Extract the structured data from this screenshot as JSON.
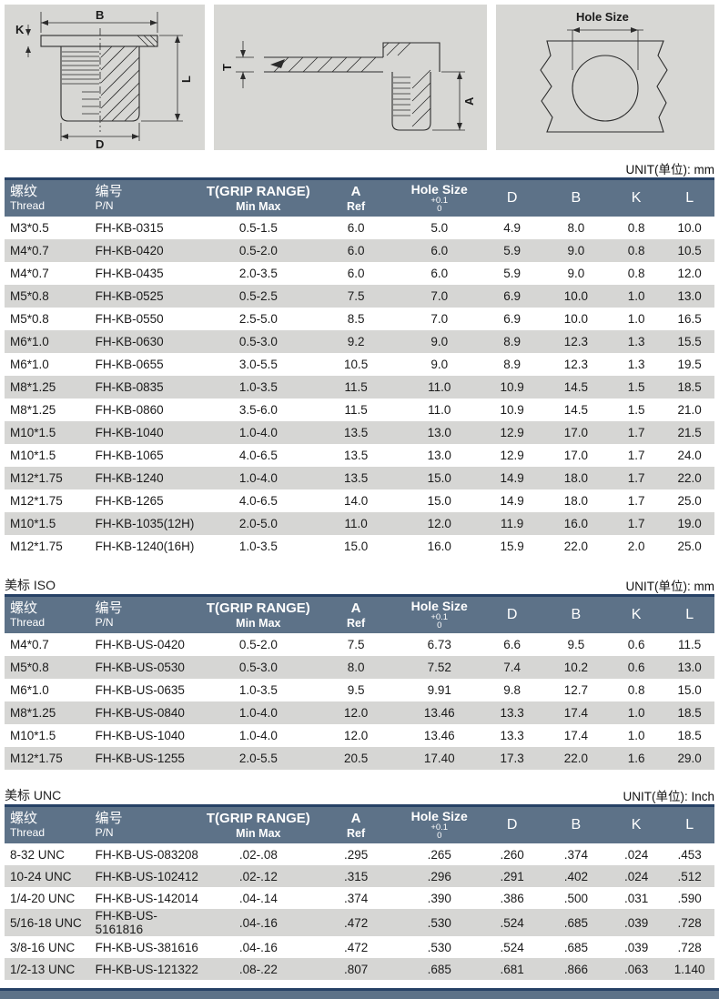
{
  "diagrams": {
    "front": {
      "b": "B",
      "k": "K",
      "l": "L",
      "d": "D"
    },
    "installed": {
      "t": "T",
      "a": "A"
    },
    "hole": {
      "label": "Hole Size"
    }
  },
  "header_labels": {
    "thread_cn": "螺纹",
    "thread_en": "Thread",
    "pn_cn": "编号",
    "pn_en": "P/N",
    "grip_label": "T(GRIP RANGE)",
    "grip_sub": "Min Max",
    "a_label": "A",
    "a_sub": "Ref",
    "hole_label": "Hole Size",
    "hole_tol_top": "+0.1",
    "hole_tol_bot": "0",
    "d_label": "D",
    "b_label": "B",
    "k_label": "K",
    "l_label": "L"
  },
  "colors": {
    "header_bg": "#5d7288",
    "header_border": "#274266",
    "row_alt": "#d6d6d4",
    "panel_bg": "#d7d7d4"
  },
  "tables": [
    {
      "section_label": "",
      "unit_label": "UNIT(单位): mm",
      "rows": [
        [
          "M3*0.5",
          "FH-KB-0315",
          "0.5-1.5",
          "6.0",
          "5.0",
          "4.9",
          "8.0",
          "0.8",
          "10.0"
        ],
        [
          "M4*0.7",
          "FH-KB-0420",
          "0.5-2.0",
          "6.0",
          "6.0",
          "5.9",
          "9.0",
          "0.8",
          "10.5"
        ],
        [
          "M4*0.7",
          "FH-KB-0435",
          "2.0-3.5",
          "6.0",
          "6.0",
          "5.9",
          "9.0",
          "0.8",
          "12.0"
        ],
        [
          "M5*0.8",
          "FH-KB-0525",
          "0.5-2.5",
          "7.5",
          "7.0",
          "6.9",
          "10.0",
          "1.0",
          "13.0"
        ],
        [
          "M5*0.8",
          "FH-KB-0550",
          "2.5-5.0",
          "8.5",
          "7.0",
          "6.9",
          "10.0",
          "1.0",
          "16.5"
        ],
        [
          "M6*1.0",
          "FH-KB-0630",
          "0.5-3.0",
          "9.2",
          "9.0",
          "8.9",
          "12.3",
          "1.3",
          "15.5"
        ],
        [
          "M6*1.0",
          "FH-KB-0655",
          "3.0-5.5",
          "10.5",
          "9.0",
          "8.9",
          "12.3",
          "1.3",
          "19.5"
        ],
        [
          "M8*1.25",
          "FH-KB-0835",
          "1.0-3.5",
          "11.5",
          "11.0",
          "10.9",
          "14.5",
          "1.5",
          "18.5"
        ],
        [
          "M8*1.25",
          "FH-KB-0860",
          "3.5-6.0",
          "11.5",
          "11.0",
          "10.9",
          "14.5",
          "1.5",
          "21.0"
        ],
        [
          "M10*1.5",
          "FH-KB-1040",
          "1.0-4.0",
          "13.5",
          "13.0",
          "12.9",
          "17.0",
          "1.7",
          "21.5"
        ],
        [
          "M10*1.5",
          "FH-KB-1065",
          "4.0-6.5",
          "13.5",
          "13.0",
          "12.9",
          "17.0",
          "1.7",
          "24.0"
        ],
        [
          "M12*1.75",
          "FH-KB-1240",
          "1.0-4.0",
          "13.5",
          "15.0",
          "14.9",
          "18.0",
          "1.7",
          "22.0"
        ],
        [
          "M12*1.75",
          "FH-KB-1265",
          "4.0-6.5",
          "14.0",
          "15.0",
          "14.9",
          "18.0",
          "1.7",
          "25.0"
        ],
        [
          "M10*1.5",
          "FH-KB-1035(12H)",
          "2.0-5.0",
          "11.0",
          "12.0",
          "11.9",
          "16.0",
          "1.7",
          "19.0"
        ],
        [
          "M12*1.75",
          "FH-KB-1240(16H)",
          "1.0-3.5",
          "15.0",
          "16.0",
          "15.9",
          "22.0",
          "2.0",
          "25.0"
        ]
      ]
    },
    {
      "section_label": "美标 ISO",
      "unit_label": "UNIT(单位): mm",
      "rows": [
        [
          "M4*0.7",
          "FH-KB-US-0420",
          "0.5-2.0",
          "7.5",
          "6.73",
          "6.6",
          "9.5",
          "0.6",
          "11.5"
        ],
        [
          "M5*0.8",
          "FH-KB-US-0530",
          "0.5-3.0",
          "8.0",
          "7.52",
          "7.4",
          "10.2",
          "0.6",
          "13.0"
        ],
        [
          "M6*1.0",
          "FH-KB-US-0635",
          "1.0-3.5",
          "9.5",
          "9.91",
          "9.8",
          "12.7",
          "0.8",
          "15.0"
        ],
        [
          "M8*1.25",
          "FH-KB-US-0840",
          "1.0-4.0",
          "12.0",
          "13.46",
          "13.3",
          "17.4",
          "1.0",
          "18.5"
        ],
        [
          "M10*1.5",
          "FH-KB-US-1040",
          "1.0-4.0",
          "12.0",
          "13.46",
          "13.3",
          "17.4",
          "1.0",
          "18.5"
        ],
        [
          "M12*1.75",
          "FH-KB-US-1255",
          "2.0-5.5",
          "20.5",
          "17.40",
          "17.3",
          "22.0",
          "1.6",
          "29.0"
        ]
      ]
    },
    {
      "section_label": "美标 UNC",
      "unit_label": "UNIT(单位): Inch",
      "rows": [
        [
          "8-32 UNC",
          "FH-KB-US-083208",
          ".02-.08",
          ".295",
          ".265",
          ".260",
          ".374",
          ".024",
          ".453"
        ],
        [
          "10-24 UNC",
          "FH-KB-US-102412",
          ".02-.12",
          ".315",
          ".296",
          ".291",
          ".402",
          ".024",
          ".512"
        ],
        [
          "1/4-20 UNC",
          "FH-KB-US-142014",
          ".04-.14",
          ".374",
          ".390",
          ".386",
          ".500",
          ".031",
          ".590"
        ],
        [
          "5/16-18 UNC",
          "FH-KB-US-5161816",
          ".04-.16",
          ".472",
          ".530",
          ".524",
          ".685",
          ".039",
          ".728"
        ],
        [
          "3/8-16 UNC",
          "FH-KB-US-381616",
          ".04-.16",
          ".472",
          ".530",
          ".524",
          ".685",
          ".039",
          ".728"
        ],
        [
          "1/2-13 UNC",
          "FH-KB-US-121322",
          ".08-.22",
          ".807",
          ".685",
          ".681",
          ".866",
          ".063",
          "1.140"
        ]
      ]
    }
  ]
}
